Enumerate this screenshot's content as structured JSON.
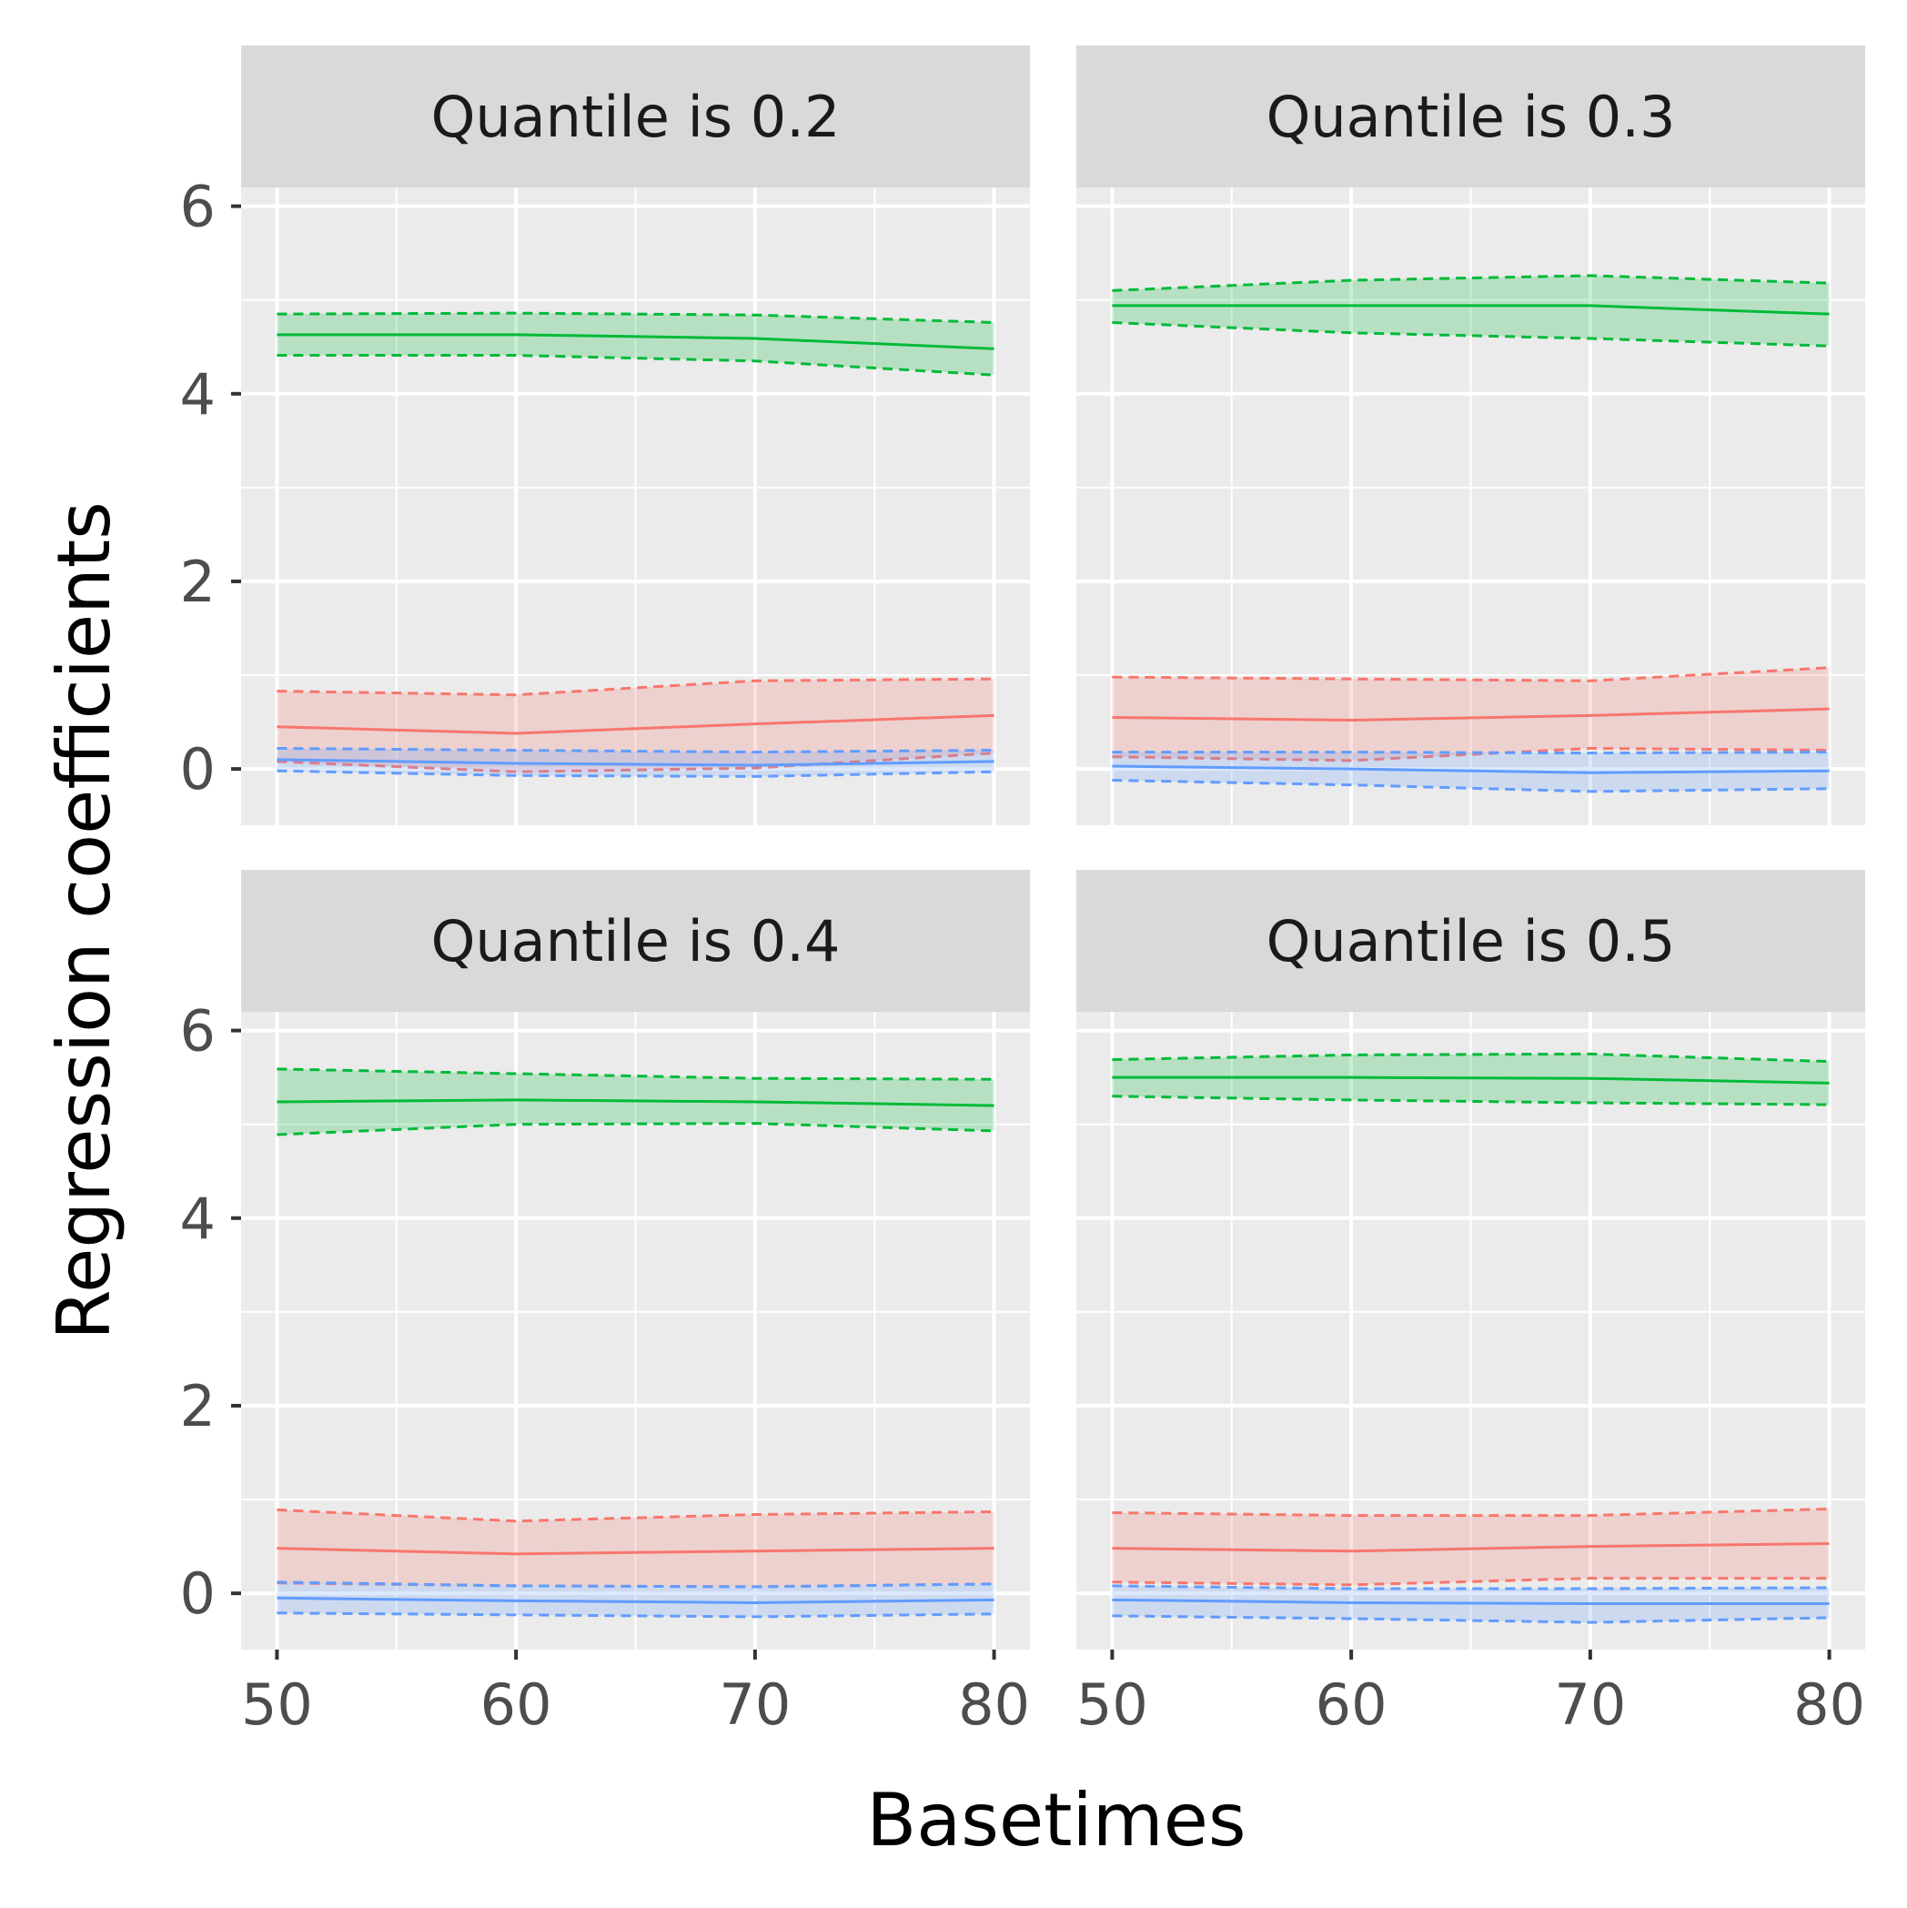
{
  "chart_data": {
    "type": "line",
    "xlabel": "Basetimes",
    "ylabel": "Regression coefficients",
    "xlim": [
      48.5,
      81.5
    ],
    "ylim": [
      -0.6,
      6.2
    ],
    "xticks": [
      50,
      60,
      70,
      80
    ],
    "yticks": [
      0,
      2,
      4,
      6
    ],
    "x": [
      50,
      60,
      70,
      80
    ],
    "colors": {
      "red": "#F8766D",
      "green": "#00BA38",
      "blue": "#619CFF"
    },
    "panels": [
      {
        "title": "Quantile is 0.2",
        "series": [
          {
            "color": "red",
            "estimate": [
              0.45,
              0.38,
              0.48,
              0.57
            ],
            "lower": [
              0.08,
              -0.03,
              0.01,
              0.17
            ],
            "upper": [
              0.83,
              0.79,
              0.94,
              0.96
            ]
          },
          {
            "color": "green",
            "estimate": [
              4.63,
              4.63,
              4.59,
              4.48
            ],
            "lower": [
              4.41,
              4.41,
              4.35,
              4.2
            ],
            "upper": [
              4.85,
              4.86,
              4.84,
              4.76
            ]
          },
          {
            "color": "blue",
            "estimate": [
              0.1,
              0.06,
              0.04,
              0.08
            ],
            "lower": [
              -0.02,
              -0.07,
              -0.08,
              -0.03
            ],
            "upper": [
              0.22,
              0.2,
              0.18,
              0.2
            ]
          }
        ]
      },
      {
        "title": "Quantile is 0.3",
        "series": [
          {
            "color": "red",
            "estimate": [
              0.55,
              0.52,
              0.57,
              0.64
            ],
            "lower": [
              0.13,
              0.09,
              0.22,
              0.2
            ],
            "upper": [
              0.98,
              0.96,
              0.94,
              1.08
            ]
          },
          {
            "color": "green",
            "estimate": [
              4.94,
              4.94,
              4.94,
              4.85
            ],
            "lower": [
              4.76,
              4.65,
              4.59,
              4.51
            ],
            "upper": [
              5.1,
              5.21,
              5.26,
              5.18
            ]
          },
          {
            "color": "blue",
            "estimate": [
              0.03,
              0.0,
              -0.04,
              -0.02
            ],
            "lower": [
              -0.12,
              -0.17,
              -0.24,
              -0.21
            ],
            "upper": [
              0.18,
              0.18,
              0.17,
              0.18
            ]
          }
        ]
      },
      {
        "title": "Quantile is 0.4",
        "series": [
          {
            "color": "red",
            "estimate": [
              0.48,
              0.42,
              0.45,
              0.48
            ],
            "lower": [
              0.11,
              0.08,
              0.07,
              0.1
            ],
            "upper": [
              0.89,
              0.77,
              0.84,
              0.87
            ]
          },
          {
            "color": "green",
            "estimate": [
              5.24,
              5.26,
              5.24,
              5.2
            ],
            "lower": [
              4.89,
              5.0,
              5.01,
              4.93
            ],
            "upper": [
              5.59,
              5.54,
              5.49,
              5.48
            ]
          },
          {
            "color": "blue",
            "estimate": [
              -0.05,
              -0.08,
              -0.1,
              -0.07
            ],
            "lower": [
              -0.21,
              -0.23,
              -0.25,
              -0.22
            ],
            "upper": [
              0.12,
              0.08,
              0.07,
              0.1
            ]
          }
        ]
      },
      {
        "title": "Quantile is 0.5",
        "series": [
          {
            "color": "red",
            "estimate": [
              0.48,
              0.45,
              0.5,
              0.53
            ],
            "lower": [
              0.12,
              0.09,
              0.16,
              0.16
            ],
            "upper": [
              0.86,
              0.83,
              0.83,
              0.9
            ]
          },
          {
            "color": "green",
            "estimate": [
              5.5,
              5.5,
              5.49,
              5.44
            ],
            "lower": [
              5.3,
              5.26,
              5.23,
              5.21
            ],
            "upper": [
              5.69,
              5.74,
              5.75,
              5.67
            ]
          },
          {
            "color": "blue",
            "estimate": [
              -0.07,
              -0.1,
              -0.11,
              -0.11
            ],
            "lower": [
              -0.24,
              -0.27,
              -0.31,
              -0.26
            ],
            "upper": [
              0.08,
              0.05,
              0.05,
              0.06
            ]
          }
        ]
      }
    ]
  }
}
